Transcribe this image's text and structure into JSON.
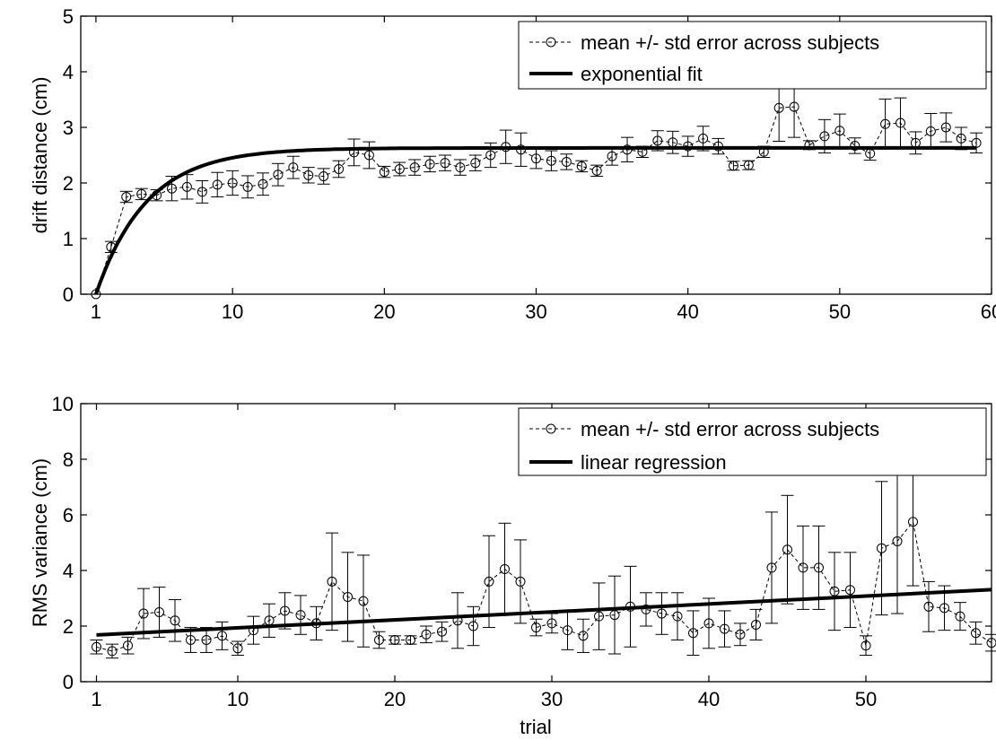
{
  "chart_data": [
    {
      "type": "line",
      "xlabel": "",
      "ylabel": "drift distance (cm)",
      "xlim": [
        0,
        60
      ],
      "ylim": [
        0,
        5
      ],
      "xticks": [
        1,
        10,
        20,
        30,
        40,
        50,
        60
      ],
      "yticks": [
        0,
        1,
        2,
        3,
        4,
        5
      ],
      "grid": false,
      "legend_position": "top-right",
      "series": [
        {
          "name": "mean +/- std error across subjects",
          "style": "dashed-circle-markers",
          "x": [
            1,
            2,
            3,
            4,
            5,
            6,
            7,
            8,
            9,
            10,
            11,
            12,
            13,
            14,
            15,
            16,
            17,
            18,
            19,
            20,
            21,
            22,
            23,
            24,
            25,
            26,
            27,
            28,
            29,
            30,
            31,
            32,
            33,
            34,
            35,
            36,
            37,
            38,
            39,
            40,
            41,
            42,
            43,
            44,
            45,
            46,
            47,
            48,
            49,
            50,
            51,
            52,
            53,
            54,
            55,
            56,
            57,
            58,
            59
          ],
          "y": [
            0,
            0.85,
            1.75,
            1.8,
            1.78,
            1.9,
            1.93,
            1.84,
            1.97,
            2.0,
            1.93,
            1.98,
            2.15,
            2.28,
            2.14,
            2.12,
            2.25,
            2.55,
            2.5,
            2.2,
            2.25,
            2.28,
            2.34,
            2.36,
            2.28,
            2.36,
            2.5,
            2.65,
            2.6,
            2.44,
            2.4,
            2.38,
            2.3,
            2.22,
            2.48,
            2.6,
            2.56,
            2.76,
            2.73,
            2.66,
            2.8,
            2.66,
            2.31,
            2.32,
            2.56,
            3.35,
            3.37,
            2.68,
            2.84,
            2.94,
            2.67,
            2.53,
            3.06,
            3.08,
            2.72,
            2.93,
            3.0,
            2.8,
            2.72
          ],
          "err": [
            0,
            0.1,
            0.1,
            0.1,
            0.1,
            0.22,
            0.22,
            0.2,
            0.22,
            0.22,
            0.2,
            0.2,
            0.2,
            0.2,
            0.14,
            0.14,
            0.15,
            0.24,
            0.24,
            0.1,
            0.12,
            0.14,
            0.14,
            0.14,
            0.14,
            0.14,
            0.22,
            0.3,
            0.3,
            0.18,
            0.18,
            0.14,
            0.1,
            0.1,
            0.16,
            0.22,
            0.1,
            0.18,
            0.2,
            0.18,
            0.22,
            0.14,
            0.08,
            0.08,
            0.1,
            0.6,
            0.55,
            0.08,
            0.3,
            0.3,
            0.14,
            0.12,
            0.45,
            0.45,
            0.2,
            0.32,
            0.26,
            0.2,
            0.18
          ]
        },
        {
          "name": "exponential fit",
          "style": "thick-solid",
          "amplitude": 2.63,
          "rate": 0.3,
          "x_start": 1,
          "x_end": 59
        }
      ]
    },
    {
      "type": "line",
      "xlabel": "trial",
      "ylabel": "RMS variance (cm)",
      "xlim": [
        0,
        58
      ],
      "ylim": [
        0,
        10
      ],
      "xticks": [
        1,
        10,
        20,
        30,
        40,
        50
      ],
      "yticks": [
        0,
        2,
        4,
        6,
        8,
        10
      ],
      "grid": false,
      "legend_position": "top-right",
      "series": [
        {
          "name": "mean +/- std error across subjects",
          "style": "dashed-circle-markers",
          "x": [
            1,
            2,
            3,
            4,
            5,
            6,
            7,
            8,
            9,
            10,
            11,
            12,
            13,
            14,
            15,
            16,
            17,
            18,
            19,
            20,
            21,
            22,
            23,
            24,
            25,
            26,
            27,
            28,
            29,
            30,
            31,
            32,
            33,
            34,
            35,
            36,
            37,
            38,
            39,
            40,
            41,
            42,
            43,
            44,
            45,
            46,
            47,
            48,
            49,
            50,
            51,
            52,
            53,
            54,
            55,
            56,
            57,
            58
          ],
          "y": [
            1.25,
            1.1,
            1.3,
            2.45,
            2.5,
            2.2,
            1.5,
            1.5,
            1.65,
            1.2,
            1.85,
            2.2,
            2.55,
            2.4,
            2.1,
            3.6,
            3.05,
            2.9,
            1.5,
            1.5,
            1.5,
            1.7,
            1.8,
            2.2,
            2.0,
            3.6,
            4.05,
            3.6,
            1.95,
            2.1,
            1.85,
            1.65,
            2.35,
            2.4,
            2.7,
            2.6,
            2.45,
            2.35,
            1.75,
            2.1,
            1.9,
            1.7,
            2.05,
            4.1,
            4.75,
            4.1,
            4.1,
            3.25,
            3.3,
            1.3,
            4.8,
            5.05,
            5.75,
            2.7,
            2.65,
            2.35,
            1.75,
            1.4
          ],
          "err": [
            0.25,
            0.25,
            0.3,
            0.9,
            0.9,
            0.75,
            0.45,
            0.45,
            0.5,
            0.25,
            0.5,
            0.6,
            0.65,
            0.7,
            0.6,
            1.75,
            1.6,
            1.65,
            0.3,
            0.15,
            0.15,
            0.3,
            0.35,
            1.0,
            0.7,
            1.65,
            1.65,
            1.5,
            0.3,
            0.35,
            0.7,
            0.6,
            1.2,
            1.4,
            1.45,
            0.6,
            0.75,
            0.85,
            0.8,
            0.9,
            0.65,
            0.4,
            0.55,
            2.0,
            1.95,
            1.5,
            1.5,
            1.4,
            1.35,
            0.35,
            2.4,
            2.6,
            2.3,
            0.9,
            0.8,
            0.5,
            0.4,
            0.3
          ]
        },
        {
          "name": "linear regression",
          "style": "thick-solid",
          "intercept": 1.68,
          "slope": 0.0286,
          "x_start": 1,
          "x_end": 58
        }
      ]
    }
  ]
}
